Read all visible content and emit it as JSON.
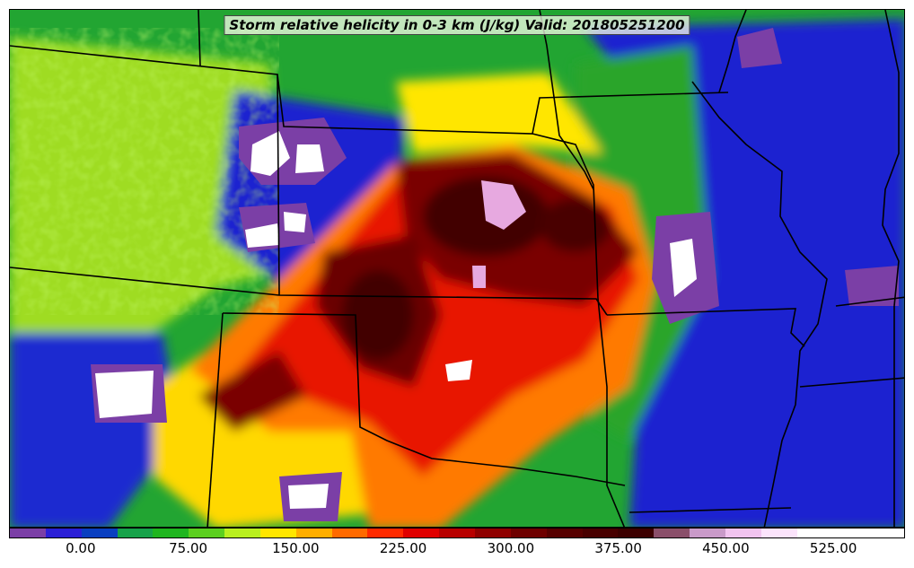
{
  "title": "Storm relative helicity in 0-3 km (J/kg) Valid: 201805251200",
  "colorbar": {
    "min": -50,
    "max": 575,
    "step": 25,
    "colors": [
      "#7b3fa6",
      "#2b1fd6",
      "#0a3fc0",
      "#17a24a",
      "#1fb51f",
      "#5ccf1f",
      "#b9ef1f",
      "#ffe600",
      "#ffae00",
      "#ff6a00",
      "#ff2a00",
      "#e00000",
      "#b80000",
      "#8f0000",
      "#6e0000",
      "#560000",
      "#480000",
      "#3c0000",
      "#8a4f6a",
      "#c99ac9",
      "#f1c3ef",
      "#fbe3fb",
      "#ffffff",
      "#ffffff",
      "#ffffff"
    ],
    "tick_labels": [
      "0.00",
      "75.00",
      "150.00",
      "225.00",
      "300.00",
      "375.00",
      "450.00",
      "525.00"
    ],
    "tick_values": [
      0,
      75,
      150,
      225,
      300,
      375,
      450,
      525
    ]
  },
  "legend_position": "bottom"
}
